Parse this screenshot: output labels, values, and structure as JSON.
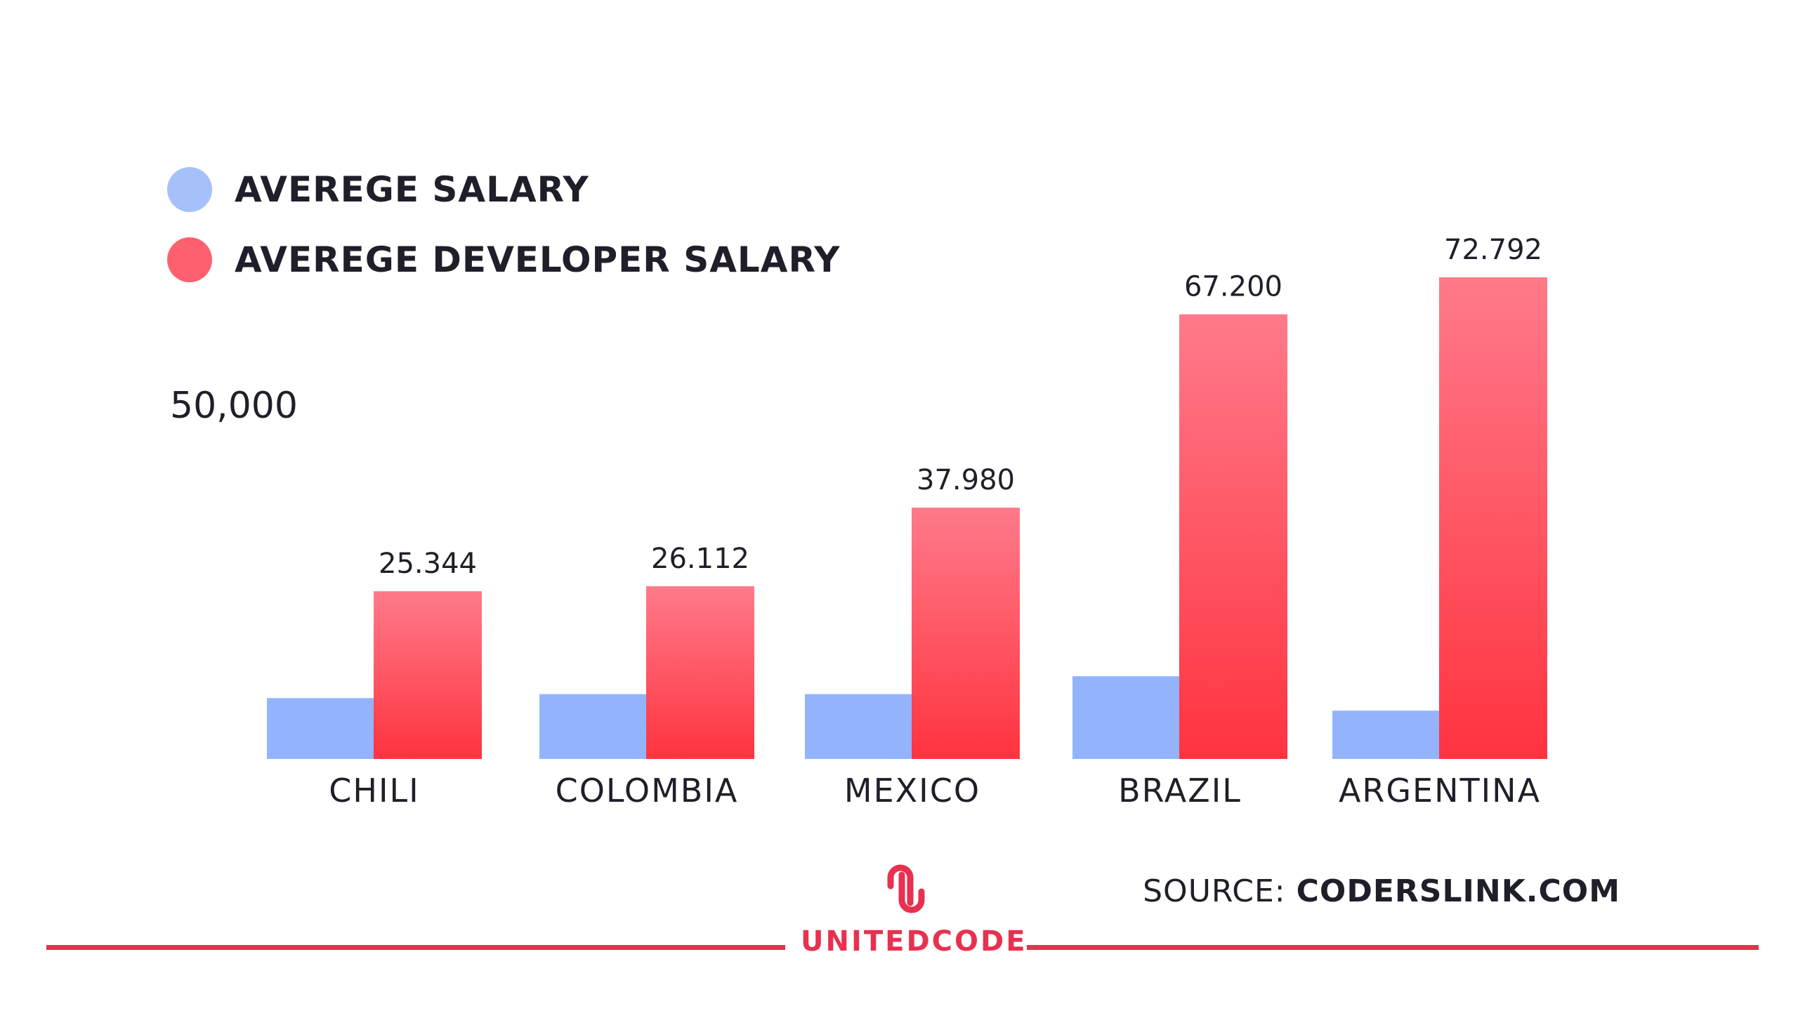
{
  "chart_data": {
    "type": "bar",
    "categories": [
      "CHILI",
      "COLOMBIA",
      "MEXICO",
      "BRAZIL",
      "ARGENTINA"
    ],
    "series": [
      {
        "name": "AVEREGE SALARY",
        "color": "#93b4fd",
        "values": [
          9200,
          9800,
          9800,
          12500,
          7300
        ],
        "value_labels": [
          "",
          "",
          "",
          "",
          ""
        ]
      },
      {
        "name": "AVEREGE DEVELOPER SALARY",
        "color": "#ff4d5c",
        "values": [
          25344,
          26112,
          37980,
          67200,
          72792
        ],
        "value_labels": [
          "25.344",
          "26.112",
          "37.980",
          "67.200",
          "72.792"
        ]
      }
    ],
    "y_ticks": [
      "50,000"
    ],
    "ylim": [
      0,
      100000
    ],
    "grid": false,
    "legend_position": "top-left"
  },
  "footer": {
    "logo_text": "UNITEDCODE",
    "source_label": "SOURCE:",
    "source_value": "CODERSLINK.COM"
  },
  "colors": {
    "accent": "#e8314f",
    "text": "#1f1f2a",
    "bar_blue": "#93b4fd",
    "bar_red_top": "#ff7a8a",
    "bar_red_bottom": "#ff333f"
  }
}
